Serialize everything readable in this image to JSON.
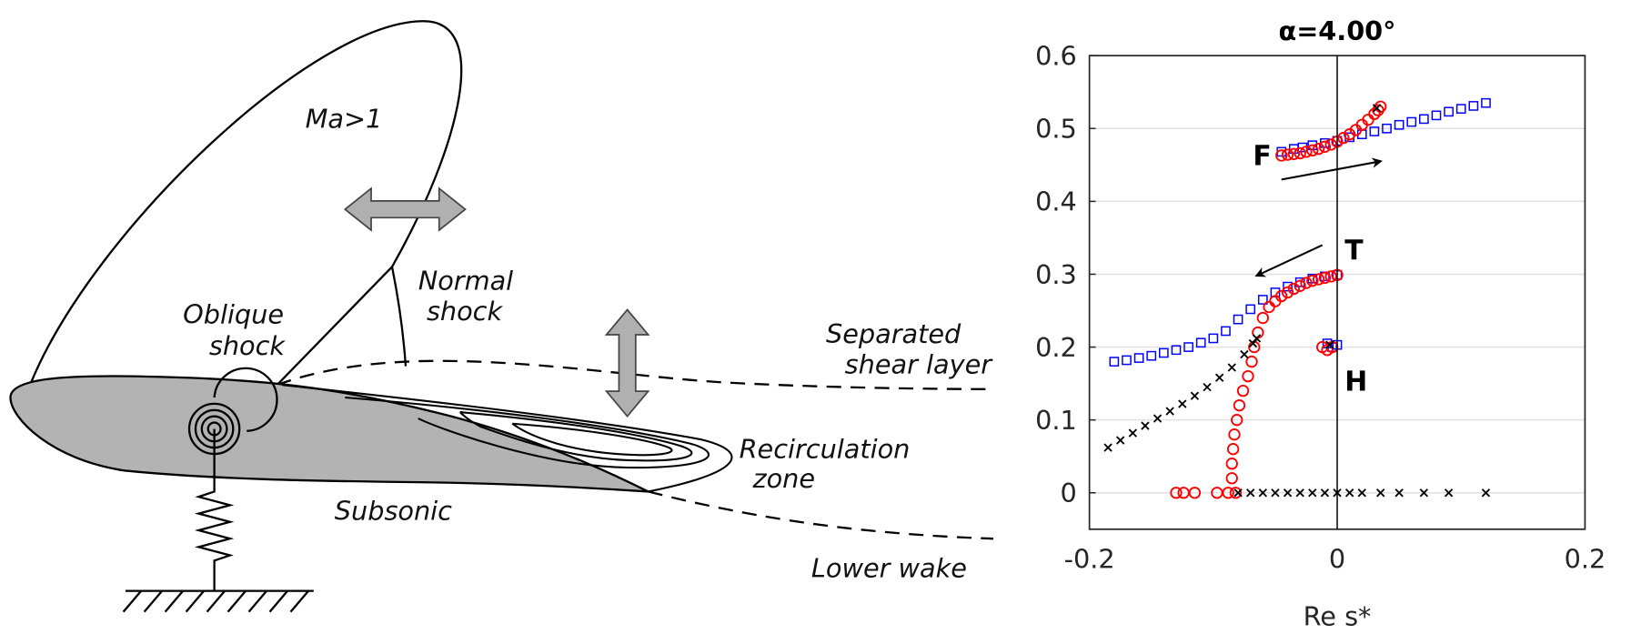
{
  "diagram": {
    "labels": {
      "supersonic": "Ma>1",
      "normal_shock_1": "Normal",
      "normal_shock_2": "shock",
      "oblique_shock_1": "Oblique",
      "oblique_shock_2": "shock",
      "separated_1": "Separated",
      "separated_2": "shear layer",
      "recirc_1": "Recirculation",
      "recirc_2": "zone",
      "subsonic": "Subsonic",
      "lower_wake": "Lower wake"
    },
    "colors": {
      "airfoil": "#b3b3b3",
      "arrow": "#b0b0b0"
    }
  },
  "chart_data": {
    "type": "scatter",
    "title": "α=4.00°",
    "xlabel": "Re s*",
    "ylabel": "",
    "xlim": [
      -0.2,
      0.2
    ],
    "ylim": [
      -0.05,
      0.6
    ],
    "xticks": [
      -0.2,
      0,
      0.2
    ],
    "xtick_labels": [
      "-0.2",
      "0",
      "0.2"
    ],
    "yticks": [
      0,
      0.1,
      0.2,
      0.3,
      0.4,
      0.5,
      0.6
    ],
    "ytick_labels": [
      "0",
      "0.1",
      "0.2",
      "0.3",
      "0.4",
      "0.5",
      "0.6"
    ],
    "grid": "horizontal",
    "annotations": [
      {
        "text": "F",
        "x": -0.068,
        "y": 0.45
      },
      {
        "text": "T",
        "x": 0.006,
        "y": 0.32
      },
      {
        "text": "H",
        "x": 0.006,
        "y": 0.14
      }
    ],
    "arrows": [
      {
        "from": [
          -0.045,
          0.43
        ],
        "to": [
          0.035,
          0.455
        ]
      },
      {
        "from": [
          -0.012,
          0.34
        ],
        "to": [
          -0.065,
          0.298
        ]
      }
    ],
    "series": [
      {
        "name": "blue-squares",
        "marker": "square",
        "color": "#0000ff",
        "points": [
          [
            -0.045,
            0.468
          ],
          [
            -0.035,
            0.472
          ],
          [
            -0.028,
            0.474
          ],
          [
            -0.02,
            0.477
          ],
          [
            -0.01,
            0.48
          ],
          [
            0,
            0.483
          ],
          [
            0.01,
            0.488
          ],
          [
            0.02,
            0.492
          ],
          [
            0.03,
            0.496
          ],
          [
            0.04,
            0.5
          ],
          [
            0.05,
            0.505
          ],
          [
            0.06,
            0.509
          ],
          [
            0.07,
            0.513
          ],
          [
            0.08,
            0.518
          ],
          [
            0.09,
            0.523
          ],
          [
            0.1,
            0.527
          ],
          [
            0.11,
            0.531
          ],
          [
            0.12,
            0.535
          ],
          [
            -0.18,
            0.18
          ],
          [
            -0.17,
            0.182
          ],
          [
            -0.16,
            0.185
          ],
          [
            -0.15,
            0.188
          ],
          [
            -0.14,
            0.192
          ],
          [
            -0.13,
            0.196
          ],
          [
            -0.12,
            0.2
          ],
          [
            -0.11,
            0.206
          ],
          [
            -0.1,
            0.212
          ],
          [
            -0.09,
            0.222
          ],
          [
            -0.08,
            0.238
          ],
          [
            -0.07,
            0.252
          ],
          [
            -0.06,
            0.265
          ],
          [
            -0.05,
            0.275
          ],
          [
            -0.04,
            0.283
          ],
          [
            -0.03,
            0.289
          ],
          [
            -0.02,
            0.294
          ],
          [
            -0.01,
            0.297
          ],
          [
            0,
            0.299
          ],
          [
            -0.008,
            0.205
          ],
          [
            -0.004,
            0.2
          ],
          [
            0,
            0.203
          ]
        ]
      },
      {
        "name": "red-circles",
        "marker": "circle",
        "color": "#ff0000",
        "points": [
          [
            -0.045,
            0.463
          ],
          [
            -0.04,
            0.464
          ],
          [
            -0.035,
            0.465
          ],
          [
            -0.03,
            0.466
          ],
          [
            -0.025,
            0.468
          ],
          [
            -0.02,
            0.47
          ],
          [
            -0.015,
            0.472
          ],
          [
            -0.01,
            0.475
          ],
          [
            -0.005,
            0.478
          ],
          [
            0,
            0.482
          ],
          [
            0.005,
            0.487
          ],
          [
            0.01,
            0.492
          ],
          [
            0.015,
            0.498
          ],
          [
            0.02,
            0.505
          ],
          [
            0.025,
            0.512
          ],
          [
            0.03,
            0.52
          ],
          [
            0.033,
            0.525
          ],
          [
            0.035,
            0.53
          ],
          [
            -0.085,
            0.02
          ],
          [
            -0.085,
            0.04
          ],
          [
            -0.084,
            0.06
          ],
          [
            -0.083,
            0.08
          ],
          [
            -0.081,
            0.1
          ],
          [
            -0.079,
            0.12
          ],
          [
            -0.076,
            0.14
          ],
          [
            -0.072,
            0.16
          ],
          [
            -0.069,
            0.18
          ],
          [
            -0.067,
            0.2
          ],
          [
            -0.064,
            0.22
          ],
          [
            -0.06,
            0.24
          ],
          [
            -0.055,
            0.255
          ],
          [
            -0.05,
            0.263
          ],
          [
            -0.045,
            0.27
          ],
          [
            -0.04,
            0.275
          ],
          [
            -0.035,
            0.28
          ],
          [
            -0.03,
            0.284
          ],
          [
            -0.025,
            0.288
          ],
          [
            -0.02,
            0.291
          ],
          [
            -0.015,
            0.293
          ],
          [
            -0.01,
            0.295
          ],
          [
            -0.005,
            0.297
          ],
          [
            0,
            0.299
          ],
          [
            -0.13,
            0
          ],
          [
            -0.124,
            0
          ],
          [
            -0.115,
            0
          ],
          [
            -0.097,
            0
          ],
          [
            -0.088,
            0
          ],
          [
            -0.082,
            0
          ],
          [
            -0.012,
            0.2
          ],
          [
            -0.008,
            0.196
          ],
          [
            -0.004,
            0.2
          ]
        ]
      },
      {
        "name": "black-crosses",
        "marker": "x",
        "color": "#000000",
        "points": [
          [
            -0.185,
            0.062
          ],
          [
            -0.175,
            0.072
          ],
          [
            -0.165,
            0.082
          ],
          [
            -0.155,
            0.092
          ],
          [
            -0.145,
            0.102
          ],
          [
            -0.135,
            0.112
          ],
          [
            -0.125,
            0.122
          ],
          [
            -0.115,
            0.133
          ],
          [
            -0.105,
            0.145
          ],
          [
            -0.095,
            0.158
          ],
          [
            -0.085,
            0.172
          ],
          [
            -0.075,
            0.19
          ],
          [
            -0.068,
            0.205
          ],
          [
            -0.065,
            0.212
          ],
          [
            -0.08,
            0
          ],
          [
            -0.07,
            0
          ],
          [
            -0.06,
            0
          ],
          [
            -0.05,
            0
          ],
          [
            -0.04,
            0
          ],
          [
            -0.03,
            0
          ],
          [
            -0.02,
            0
          ],
          [
            -0.01,
            0
          ],
          [
            0,
            0
          ],
          [
            0.01,
            0
          ],
          [
            0.02,
            0
          ],
          [
            0.035,
            0
          ],
          [
            0.05,
            0
          ],
          [
            0.07,
            0
          ],
          [
            0.09,
            0
          ],
          [
            0.12,
            0
          ],
          [
            0.032,
            0.528
          ],
          [
            -0.006,
            0.203
          ]
        ]
      }
    ]
  }
}
